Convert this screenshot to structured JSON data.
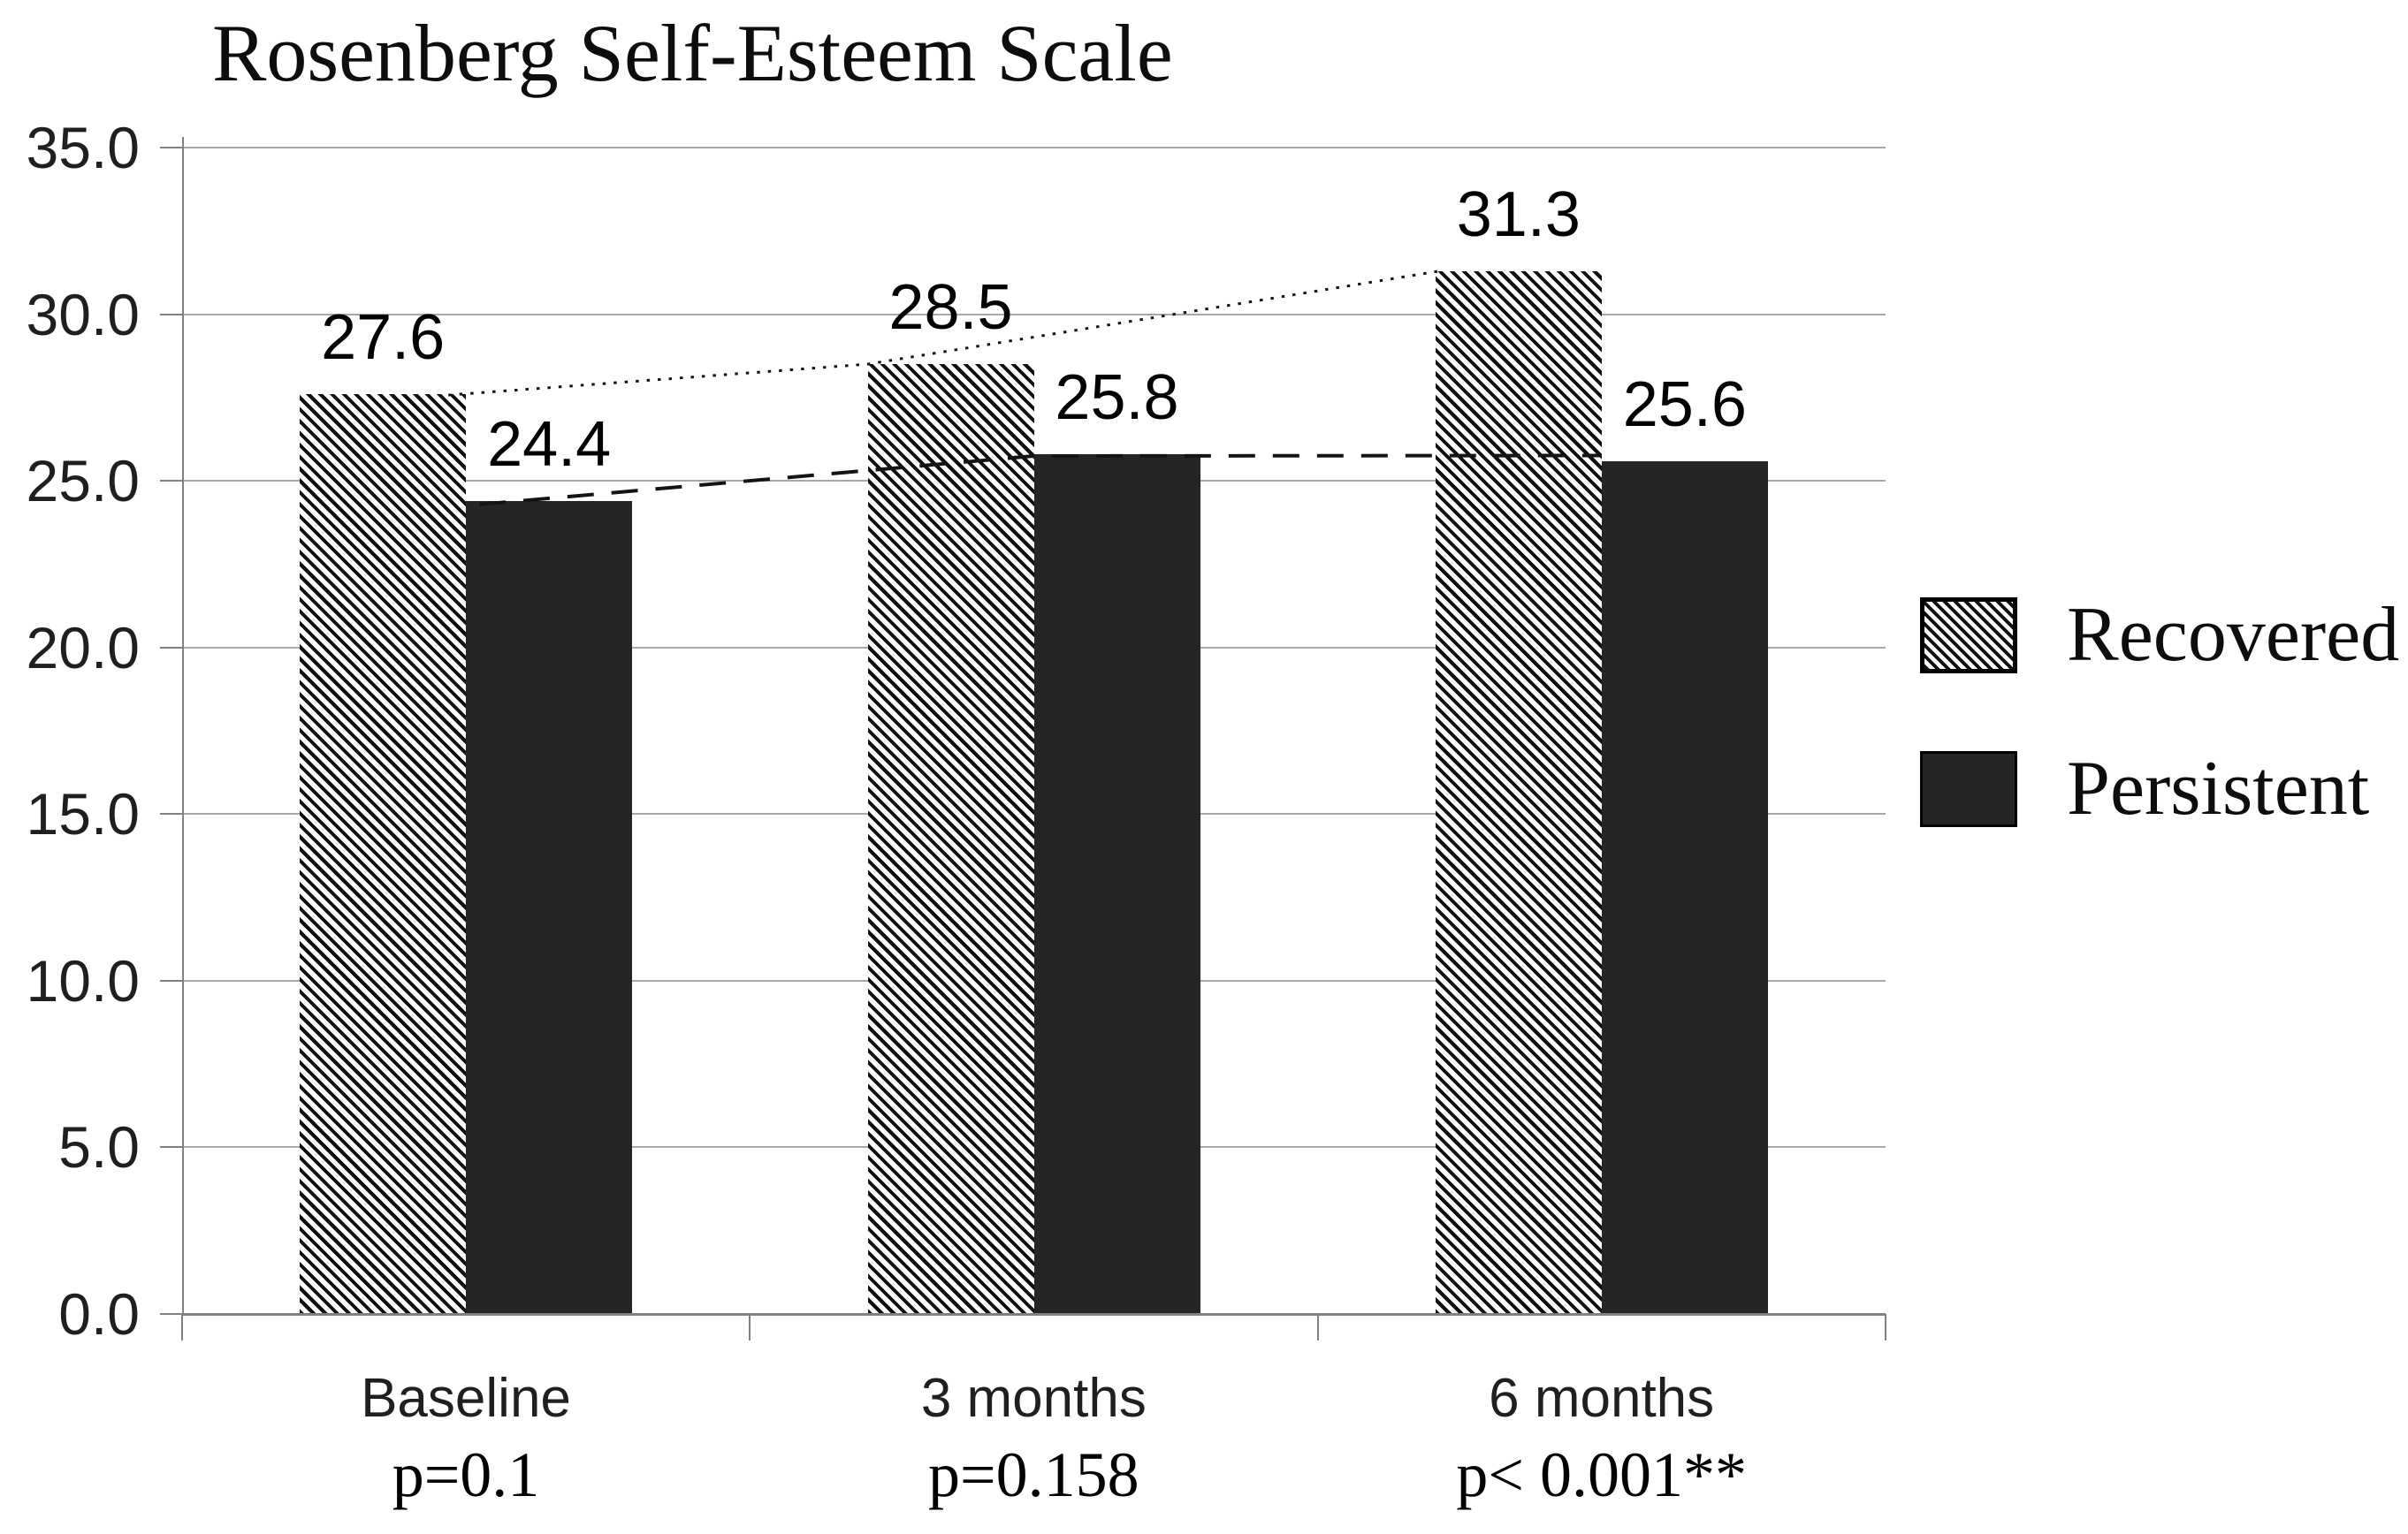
{
  "title": "Rosenberg Self-Esteem Scale",
  "chart_data": {
    "type": "bar",
    "title": "Rosenberg Self-Esteem Scale",
    "categories": [
      "Baseline",
      "3 months",
      "6 months"
    ],
    "category_sublabels": [
      "p=0.1",
      "p=0.158",
      "p< 0.001**"
    ],
    "series": [
      {
        "name": "Recovered",
        "values": [
          27.6,
          28.5,
          31.3
        ],
        "fill": "hatched",
        "trend_style": "dotted"
      },
      {
        "name": "Persistent",
        "values": [
          24.4,
          25.8,
          25.6
        ],
        "fill": "solid",
        "trend_style": "dashed"
      }
    ],
    "value_labels": [
      "27.6",
      "24.4",
      "28.5",
      "25.8",
      "31.3",
      "25.6"
    ],
    "ylim": [
      0,
      35
    ],
    "ytick_step": 5,
    "yticks": [
      "0.0",
      "5.0",
      "10.0",
      "15.0",
      "20.0",
      "25.0",
      "30.0",
      "35.0"
    ],
    "grid": true,
    "legend_position": "right",
    "colors": {
      "solid_bar": "#252525",
      "hatch_stroke": "#0f0f0f",
      "gridline": "#a8a8a8",
      "axis": "#7f7f7f",
      "trend_line": "#141414",
      "text": "#1f1f1f"
    }
  }
}
